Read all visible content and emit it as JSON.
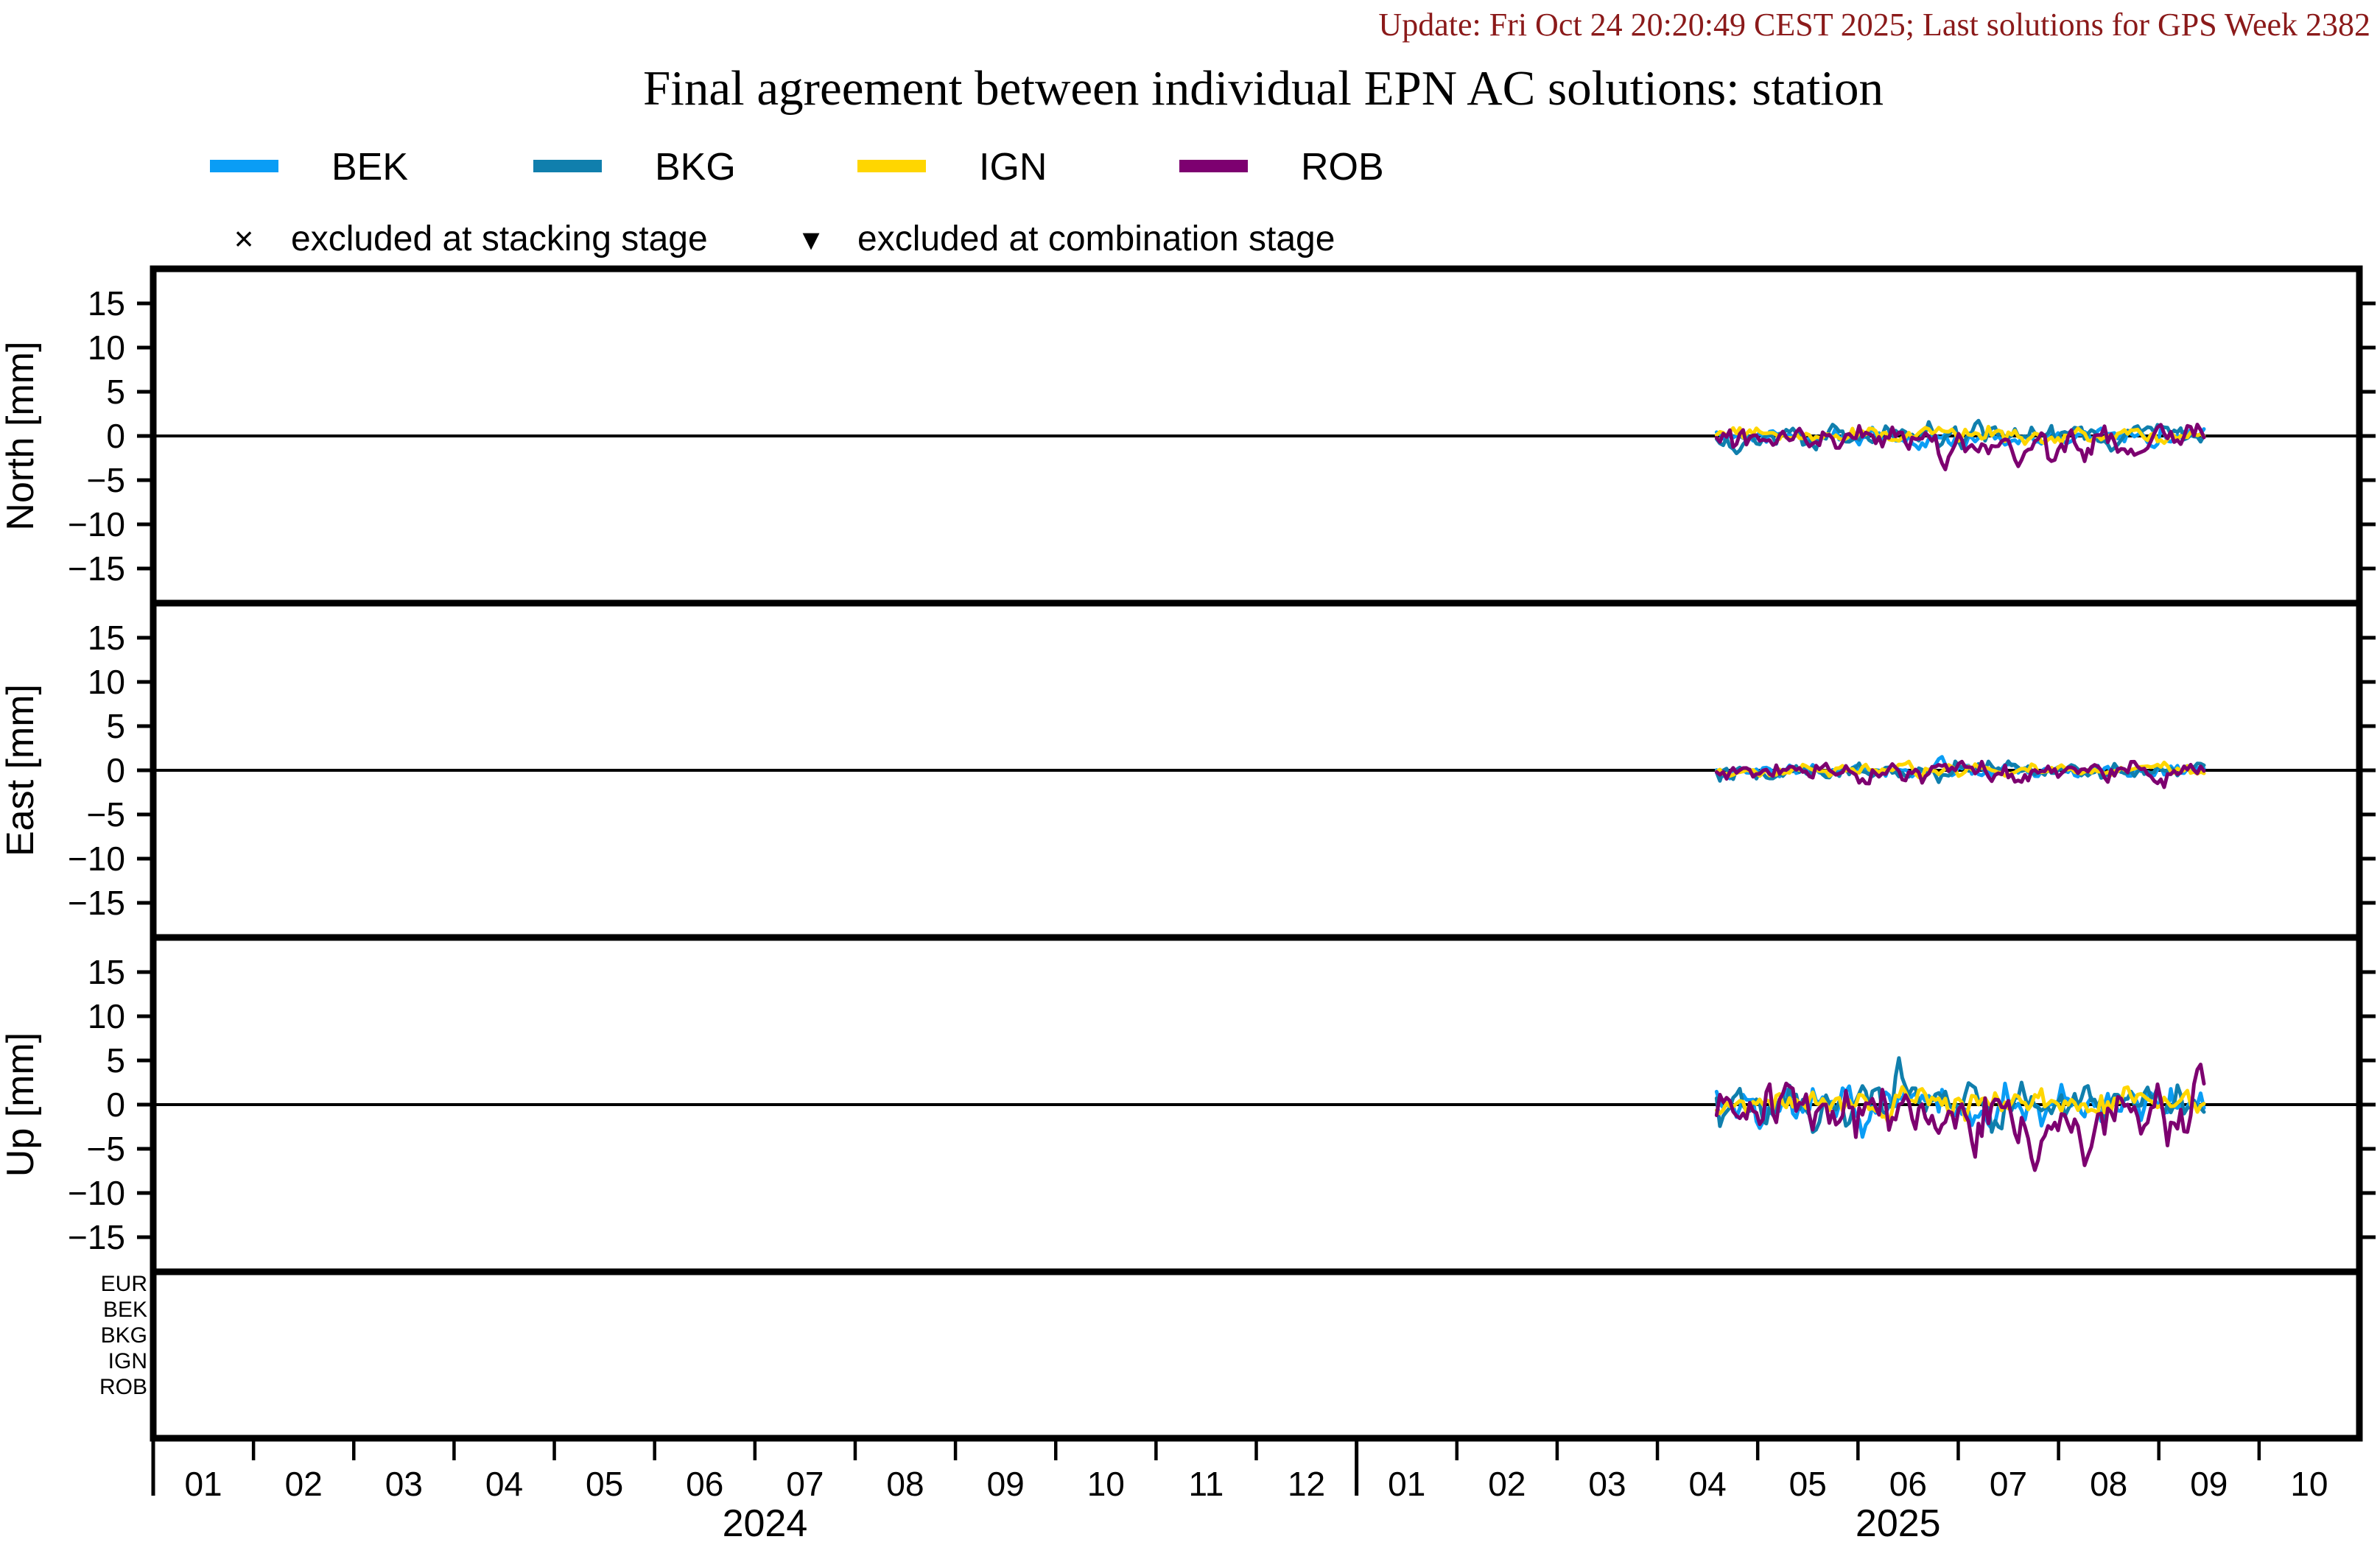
{
  "header": {
    "update_line": "Update: Fri Oct 24 20:20:49 CEST 2025; Last solutions for GPS Week 2382",
    "title": "Final agreement between individual EPN AC solutions: station"
  },
  "legend": {
    "items": [
      {
        "label": "BEK",
        "color": "#0A9DF5"
      },
      {
        "label": "BKG",
        "color": "#107FAD"
      },
      {
        "label": "IGN",
        "color": "#FFD600"
      },
      {
        "label": "ROB",
        "color": "#7D0070"
      }
    ],
    "exclusions": [
      {
        "marker": "×",
        "label": "excluded at stacking stage"
      },
      {
        "marker": "▾",
        "label": "excluded at combination stage"
      }
    ]
  },
  "chart_data": {
    "type": "line",
    "title": "Final agreement between individual EPN AC solutions: station",
    "x_axis": {
      "unit": "month",
      "start": "2024-01",
      "end": "2025-11",
      "month_labels": [
        "01",
        "02",
        "03",
        "04",
        "05",
        "06",
        "07",
        "08",
        "09",
        "10",
        "11",
        "12",
        "01",
        "02",
        "03",
        "04",
        "05",
        "06",
        "07",
        "08",
        "09",
        "10"
      ],
      "year_labels": [
        {
          "label": "2024",
          "center_month_index": 6.1
        },
        {
          "label": "2025",
          "center_month_index": 17.4
        }
      ],
      "grid": false
    },
    "y_axis": {
      "unit": "mm",
      "ticks": [
        15,
        10,
        5,
        0,
        -5,
        -10,
        -15
      ],
      "range": [
        -18.9,
        18.9
      ]
    },
    "data_span": {
      "start": "2025-04-18",
      "end": "2025-09-13",
      "start_month_index": 15.59,
      "end_month_index": 20.45,
      "points_per_series": 148
    },
    "panels": [
      {
        "id": "north",
        "ylabel": "North [mm]",
        "series": [
          {
            "name": "BEK",
            "color": "#0A9DF5",
            "mean_mm": 0,
            "sigma_mm": 0.55,
            "seed": 11,
            "spikes": []
          },
          {
            "name": "BKG",
            "color": "#107FAD",
            "mean_mm": 0,
            "sigma_mm": 0.62,
            "seed": 22,
            "spikes": [
              {
                "t": 0.53,
                "amp": 1.6
              }
            ]
          },
          {
            "name": "IGN",
            "color": "#FFD600",
            "mean_mm": 0,
            "sigma_mm": 0.45,
            "seed": 33,
            "spikes": []
          },
          {
            "name": "ROB",
            "color": "#7D0070",
            "mean_mm": -0.2,
            "sigma_mm": 0.85,
            "seed": 44,
            "bias": [
              {
                "t": 0.55,
                "amp": -0.5,
                "w": 0.3
              }
            ],
            "spikes": [
              {
                "t": 0.47,
                "amp": -2.2
              },
              {
                "t": 0.62,
                "amp": -2.4
              },
              {
                "t": 0.75,
                "amp": -2.0
              },
              {
                "t": 0.86,
                "amp": -1.8
              }
            ]
          }
        ]
      },
      {
        "id": "east",
        "ylabel": "East [mm]",
        "series": [
          {
            "name": "BEK",
            "color": "#0A9DF5",
            "mean_mm": 0,
            "sigma_mm": 0.38,
            "seed": 55,
            "spikes": [
              {
                "t": 0.46,
                "amp": 1.1
              }
            ]
          },
          {
            "name": "BKG",
            "color": "#107FAD",
            "mean_mm": 0,
            "sigma_mm": 0.42,
            "seed": 66,
            "spikes": []
          },
          {
            "name": "IGN",
            "color": "#FFD600",
            "mean_mm": 0,
            "sigma_mm": 0.32,
            "seed": 77,
            "spikes": []
          },
          {
            "name": "ROB",
            "color": "#7D0070",
            "mean_mm": -0.1,
            "sigma_mm": 0.52,
            "seed": 88,
            "spikes": [
              {
                "t": 0.3,
                "amp": -1.2
              },
              {
                "t": 0.62,
                "amp": -1.4
              }
            ]
          }
        ]
      },
      {
        "id": "up",
        "ylabel": "Up [mm]",
        "series": [
          {
            "name": "BEK",
            "color": "#0A9DF5",
            "mean_mm": 0,
            "sigma_mm": 1.05,
            "seed": 111,
            "spikes": [
              {
                "t": 0.3,
                "amp": -2.6
              },
              {
                "t": 0.845,
                "amp": 3.6
              }
            ]
          },
          {
            "name": "BKG",
            "color": "#107FAD",
            "mean_mm": 0.2,
            "sigma_mm": 1.15,
            "seed": 222,
            "spikes": [
              {
                "t": 0.38,
                "amp": 4.4
              },
              {
                "t": 0.52,
                "amp": 2.4
              },
              {
                "t": 0.58,
                "amp": -2.5
              }
            ]
          },
          {
            "name": "IGN",
            "color": "#FFD600",
            "mean_mm": 0.1,
            "sigma_mm": 0.75,
            "seed": 333,
            "spikes": []
          },
          {
            "name": "ROB",
            "color": "#7D0070",
            "mean_mm": -0.3,
            "sigma_mm": 1.35,
            "seed": 444,
            "bias": [
              {
                "t": 0.63,
                "amp": -1.9,
                "w": 0.18
              }
            ],
            "spikes": [
              {
                "t": 0.47,
                "amp": -3.2
              },
              {
                "t": 0.655,
                "amp": -5.6
              },
              {
                "t": 0.76,
                "amp": -5.0
              },
              {
                "t": 0.985,
                "amp": 3.4
              }
            ]
          }
        ]
      }
    ],
    "availability_panel": {
      "rows": [
        {
          "label": "EUR",
          "color": "#000000"
        },
        {
          "label": "BEK",
          "color": "#0A9DF5"
        },
        {
          "label": "BKG",
          "color": "#107FAD"
        },
        {
          "label": "IGN",
          "color": "#FFD600"
        },
        {
          "label": "ROB",
          "color": "#7D0070"
        }
      ]
    },
    "legend_position": "top-left",
    "colors": {
      "update_text": "#8B1A1A",
      "frame": "#000000"
    }
  }
}
